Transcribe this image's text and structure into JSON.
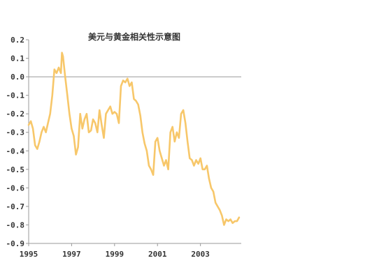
{
  "chart_data": {
    "type": "line",
    "title": "美元与黄金相关性示意图",
    "xlabel": "",
    "ylabel": "",
    "xlim": [
      1995,
      2004.9
    ],
    "ylim": [
      -0.9,
      0.2
    ],
    "grid": false,
    "legend": "none",
    "x_ticks": [
      1995,
      1997,
      1999,
      2001,
      2003
    ],
    "x_tick_labels": [
      "1995",
      "1997",
      "1999",
      "2001",
      "2003"
    ],
    "y_ticks": [
      0.2,
      0.1,
      0.0,
      -0.1,
      -0.2,
      -0.3,
      -0.4,
      -0.5,
      -0.6,
      -0.7,
      -0.8,
      -0.9
    ],
    "y_tick_labels": [
      "0.2",
      "0.1",
      "0.0",
      "-0.1",
      "-0.2",
      "-0.3",
      "-0.4",
      "-0.5",
      "-0.6",
      "-0.7",
      "-0.8",
      "-0.9"
    ],
    "series": [
      {
        "color": "#f7c76a",
        "x": [
          1995.0,
          1995.1,
          1995.2,
          1995.3,
          1995.4,
          1995.5,
          1995.6,
          1995.7,
          1995.8,
          1995.9,
          1996.0,
          1996.1,
          1996.2,
          1996.3,
          1996.4,
          1996.5,
          1996.55,
          1996.6,
          1996.7,
          1996.8,
          1996.9,
          1997.0,
          1997.1,
          1997.2,
          1997.3,
          1997.4,
          1997.5,
          1997.6,
          1997.7,
          1997.8,
          1997.9,
          1998.0,
          1998.1,
          1998.2,
          1998.3,
          1998.4,
          1998.5,
          1998.6,
          1998.7,
          1998.8,
          1998.9,
          1999.0,
          1999.1,
          1999.2,
          1999.3,
          1999.4,
          1999.5,
          1999.6,
          1999.7,
          1999.8,
          1999.9,
          2000.0,
          2000.1,
          2000.2,
          2000.3,
          2000.4,
          2000.5,
          2000.6,
          2000.7,
          2000.8,
          2000.9,
          2001.0,
          2001.1,
          2001.2,
          2001.3,
          2001.4,
          2001.5,
          2001.6,
          2001.7,
          2001.8,
          2001.9,
          2002.0,
          2002.1,
          2002.2,
          2002.3,
          2002.4,
          2002.5,
          2002.6,
          2002.7,
          2002.8,
          2002.9,
          2003.0,
          2003.1,
          2003.2,
          2003.3,
          2003.4,
          2003.5,
          2003.6,
          2003.7,
          2003.8,
          2003.9,
          2004.0,
          2004.1,
          2004.2,
          2004.3,
          2004.4,
          2004.5,
          2004.6,
          2004.7,
          2004.8
        ],
        "values": [
          -0.26,
          -0.24,
          -0.28,
          -0.37,
          -0.39,
          -0.35,
          -0.3,
          -0.27,
          -0.3,
          -0.25,
          -0.2,
          -0.1,
          0.04,
          0.02,
          0.05,
          0.02,
          0.13,
          0.11,
          0.0,
          -0.1,
          -0.2,
          -0.28,
          -0.32,
          -0.42,
          -0.38,
          -0.2,
          -0.28,
          -0.23,
          -0.2,
          -0.3,
          -0.29,
          -0.23,
          -0.25,
          -0.3,
          -0.18,
          -0.26,
          -0.33,
          -0.2,
          -0.18,
          -0.16,
          -0.2,
          -0.19,
          -0.2,
          -0.25,
          -0.05,
          -0.02,
          -0.03,
          -0.01,
          -0.05,
          -0.03,
          -0.12,
          -0.13,
          -0.15,
          -0.21,
          -0.3,
          -0.36,
          -0.4,
          -0.48,
          -0.5,
          -0.53,
          -0.35,
          -0.33,
          -0.4,
          -0.44,
          -0.48,
          -0.45,
          -0.5,
          -0.3,
          -0.27,
          -0.35,
          -0.3,
          -0.33,
          -0.2,
          -0.18,
          -0.25,
          -0.35,
          -0.44,
          -0.45,
          -0.48,
          -0.45,
          -0.47,
          -0.44,
          -0.5,
          -0.5,
          -0.48,
          -0.55,
          -0.6,
          -0.62,
          -0.68,
          -0.7,
          -0.72,
          -0.75,
          -0.8,
          -0.77,
          -0.78,
          -0.77,
          -0.79,
          -0.78,
          -0.78,
          -0.76
        ]
      }
    ]
  }
}
